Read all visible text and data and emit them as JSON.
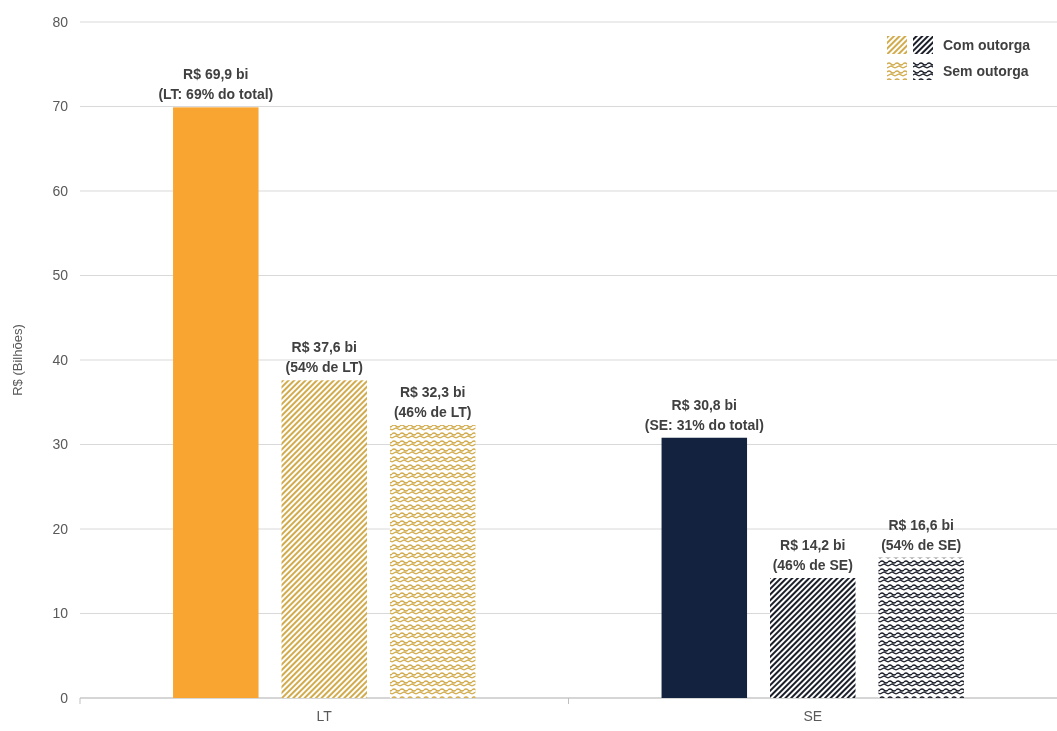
{
  "chart_data": {
    "type": "bar",
    "ylabel": "R$ (Bilhões)",
    "categories": [
      "LT",
      "SE"
    ],
    "series": [
      {
        "colors": [
          "#f8a532",
          "#13233f"
        ],
        "values": [
          69.9,
          30.8
        ],
        "value_labels": [
          "R$ 69,9 bi\n(LT: 69% do total)",
          "R$ 30,8 bi\n(SE: 31% do total)"
        ]
      },
      {
        "name": "Com outorga",
        "colors": [
          "#d2ab4c",
          "#1b1f2a"
        ],
        "values": [
          37.6,
          14.2
        ],
        "value_labels": [
          "R$ 37,6 bi\n(54% de LT)",
          "R$ 14,2 bi\n(46% de SE)"
        ]
      },
      {
        "name": "Sem outorga",
        "colors": [
          "#d2ab4c",
          "#1b1f2a"
        ],
        "values": [
          32.3,
          16.6
        ],
        "value_labels": [
          "R$ 32,3 bi\n(46% de LT)",
          "R$ 16,6 bi\n(54% de SE)"
        ]
      }
    ],
    "ylim": [
      0,
      80
    ],
    "yticks": [
      0,
      10,
      20,
      30,
      40,
      50,
      60,
      70,
      80
    ],
    "grid": "y",
    "legend": "top right"
  }
}
